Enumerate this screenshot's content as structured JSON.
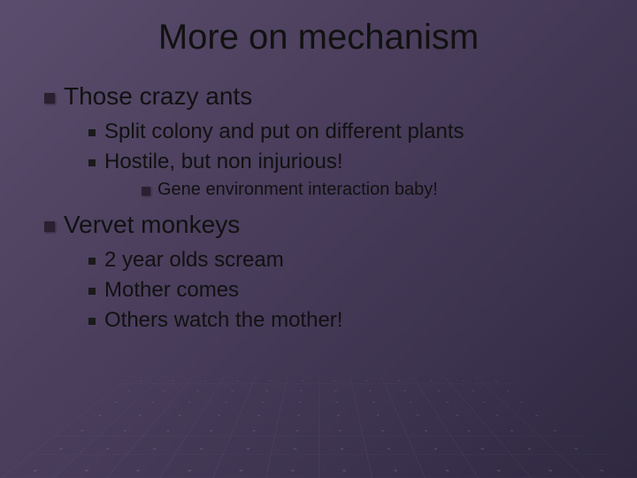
{
  "title": "More on mechanism",
  "sections": [
    {
      "heading": "Those crazy ants",
      "items": [
        "Split colony and put on different plants",
        "Hostile, but non injurious!"
      ],
      "subline": "Gene environment interaction baby!"
    },
    {
      "heading": "Vervet monkeys",
      "items": [
        "2 year olds scream",
        "Mother comes",
        "Others watch the mother!"
      ]
    }
  ],
  "style": {
    "background_gradient": [
      "#5a4d6d",
      "#4a3e5c",
      "#3d3450",
      "#2f2840"
    ],
    "title_fontsize": 40,
    "l1_fontsize": 28,
    "l2_fontsize": 24,
    "l3_fontsize": 20,
    "text_color": "#111111",
    "marker_l1_color": "#2a2030",
    "marker_l2_color": "#1a1a1a",
    "grid_line_color": "rgba(180,160,200,0.15)"
  }
}
